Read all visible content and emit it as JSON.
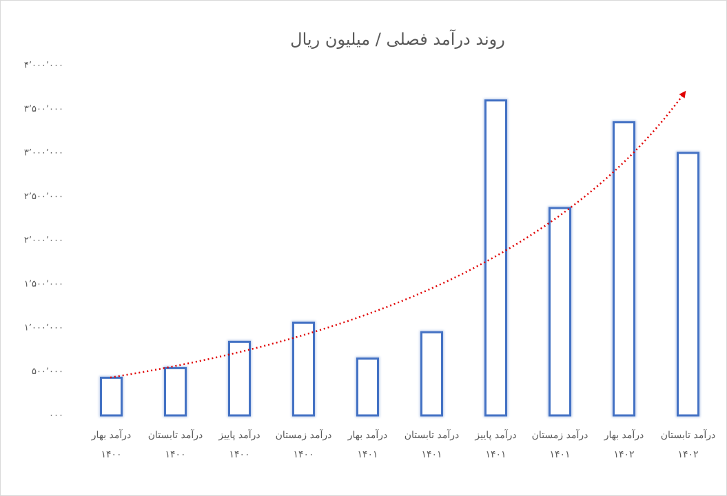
{
  "chart_data": {
    "type": "bar",
    "title": "روند درآمد فصلی / میلیون ریال",
    "categories": [
      [
        "درآمد بهار",
        "۱۴۰۰"
      ],
      [
        "درآمد تابستان",
        "۱۴۰۰"
      ],
      [
        "درآمد پاییز",
        "۱۴۰۰"
      ],
      [
        "درآمد زمستان",
        "۱۴۰۰"
      ],
      [
        "درآمد بهار",
        "۱۴۰۱"
      ],
      [
        "درآمد تابستان",
        "۱۴۰۱"
      ],
      [
        "درآمد پاییز",
        "۱۴۰۱"
      ],
      [
        "درآمد زمستان",
        "۱۴۰۱"
      ],
      [
        "درآمد بهار",
        "۱۴۰۲"
      ],
      [
        "درآمد تابستان",
        "۱۴۰۲"
      ]
    ],
    "values": [
      430000,
      540000,
      840000,
      1060000,
      650000,
      950000,
      3600000,
      2370000,
      3350000,
      3000000
    ],
    "color": "#4472c4",
    "ylim": [
      0,
      4000000
    ],
    "yticks": [
      {
        "value": 0,
        "label": "۰۰۰"
      },
      {
        "value": 500000,
        "label": "۵۰۰’۰۰۰"
      },
      {
        "value": 1000000,
        "label": "۱’۰۰۰’۰۰۰"
      },
      {
        "value": 1500000,
        "label": "۱’۵۰۰’۰۰۰"
      },
      {
        "value": 2000000,
        "label": "۲’۰۰۰’۰۰۰"
      },
      {
        "value": 2500000,
        "label": "۲’۵۰۰’۰۰۰"
      },
      {
        "value": 3000000,
        "label": "۳’۰۰۰’۰۰۰"
      },
      {
        "value": 3500000,
        "label": "۳’۵۰۰’۰۰۰"
      },
      {
        "value": 4000000,
        "label": "۴’۰۰۰’۰۰۰"
      }
    ],
    "grid": false
  }
}
